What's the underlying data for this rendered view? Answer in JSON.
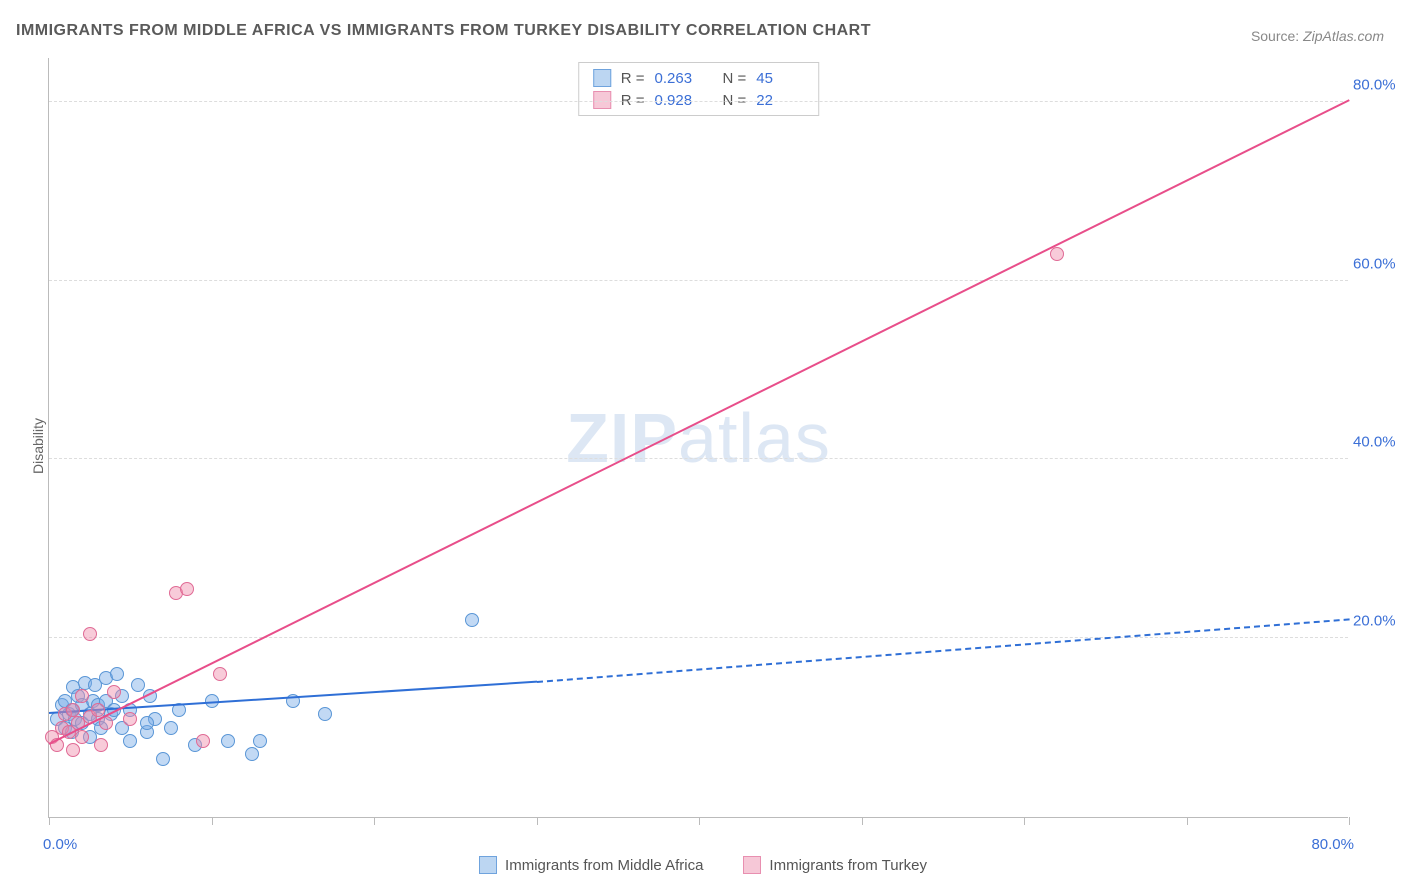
{
  "title": "IMMIGRANTS FROM MIDDLE AFRICA VS IMMIGRANTS FROM TURKEY DISABILITY CORRELATION CHART",
  "source_label": "Source:",
  "source_value": "ZipAtlas.com",
  "ylabel": "Disability",
  "watermark_a": "ZIP",
  "watermark_b": "atlas",
  "chart": {
    "type": "scatter",
    "xlim": [
      0,
      80
    ],
    "ylim": [
      0,
      85
    ],
    "x_ticks": [
      0,
      10,
      20,
      30,
      40,
      50,
      60,
      70,
      80
    ],
    "x_tick_labels": {
      "0": "0.0%",
      "80": "80.0%"
    },
    "y_gridlines": [
      20,
      40,
      60,
      80
    ],
    "y_tick_labels": {
      "20": "20.0%",
      "40": "40.0%",
      "60": "60.0%",
      "80": "80.0%"
    },
    "background_color": "#ffffff",
    "grid_color": "#dddddd",
    "axis_label_color": "#3b6fd6",
    "point_radius": 7,
    "series": [
      {
        "id": "middle_africa",
        "label": "Immigrants from Middle Africa",
        "fill": "rgba(120,170,230,0.45)",
        "stroke": "#5a96d6",
        "swatch_fill": "#bcd6f2",
        "swatch_border": "#6fa3dd",
        "R": "0.263",
        "N": "45",
        "trend": {
          "x1": 0,
          "y1": 11.5,
          "x2": 30,
          "y2": 15,
          "color": "#2f6fd6",
          "dashed_x2": 80,
          "dashed_y2": 22
        },
        "points": [
          [
            0.5,
            11
          ],
          [
            0.8,
            12.5
          ],
          [
            1,
            10
          ],
          [
            1,
            13
          ],
          [
            1.2,
            11.5
          ],
          [
            1.4,
            9.5
          ],
          [
            1.4,
            12
          ],
          [
            1.5,
            14.5
          ],
          [
            1.6,
            11
          ],
          [
            1.8,
            13.5
          ],
          [
            2,
            10.5
          ],
          [
            2,
            12.5
          ],
          [
            2.2,
            15
          ],
          [
            2.5,
            11.5
          ],
          [
            2.5,
            9
          ],
          [
            2.7,
            13
          ],
          [
            2.8,
            14.8
          ],
          [
            3,
            11
          ],
          [
            3,
            12.5
          ],
          [
            3.2,
            10
          ],
          [
            3.5,
            15.5
          ],
          [
            3.5,
            13
          ],
          [
            3.8,
            11.5
          ],
          [
            4,
            12
          ],
          [
            4.2,
            16
          ],
          [
            4.5,
            10
          ],
          [
            4.5,
            13.5
          ],
          [
            5,
            12
          ],
          [
            5,
            8.5
          ],
          [
            5.5,
            14.8
          ],
          [
            6,
            9.5
          ],
          [
            6.2,
            13.5
          ],
          [
            6.5,
            11
          ],
          [
            7,
            6.5
          ],
          [
            7.5,
            10
          ],
          [
            8,
            12
          ],
          [
            9,
            8
          ],
          [
            10,
            13
          ],
          [
            11,
            8.5
          ],
          [
            12.5,
            7
          ],
          [
            13,
            8.5
          ],
          [
            15,
            13
          ],
          [
            17,
            11.5
          ],
          [
            26,
            22
          ],
          [
            6,
            10.5
          ]
        ]
      },
      {
        "id": "turkey",
        "label": "Immigrants from Turkey",
        "fill": "rgba(240,140,170,0.45)",
        "stroke": "#e06a95",
        "swatch_fill": "#f6c8d7",
        "swatch_border": "#e88fb0",
        "R": "0.928",
        "N": "22",
        "trend": {
          "x1": 0,
          "y1": 8,
          "x2": 80,
          "y2": 80,
          "color": "#e84e8a"
        },
        "points": [
          [
            0.2,
            9
          ],
          [
            0.5,
            8
          ],
          [
            0.8,
            10
          ],
          [
            1,
            11.5
          ],
          [
            1.2,
            9.5
          ],
          [
            1.5,
            12
          ],
          [
            1.5,
            7.5
          ],
          [
            1.8,
            10.5
          ],
          [
            2,
            9
          ],
          [
            2,
            13.5
          ],
          [
            2.5,
            11.2
          ],
          [
            2.5,
            20.5
          ],
          [
            3,
            12
          ],
          [
            3.2,
            8
          ],
          [
            3.5,
            10.5
          ],
          [
            4,
            14
          ],
          [
            5,
            11
          ],
          [
            7.8,
            25
          ],
          [
            8.5,
            25.5
          ],
          [
            9.5,
            8.5
          ],
          [
            10.5,
            16
          ],
          [
            62,
            63
          ]
        ]
      }
    ]
  },
  "stats_labels": {
    "R": "R =",
    "N": "N ="
  }
}
